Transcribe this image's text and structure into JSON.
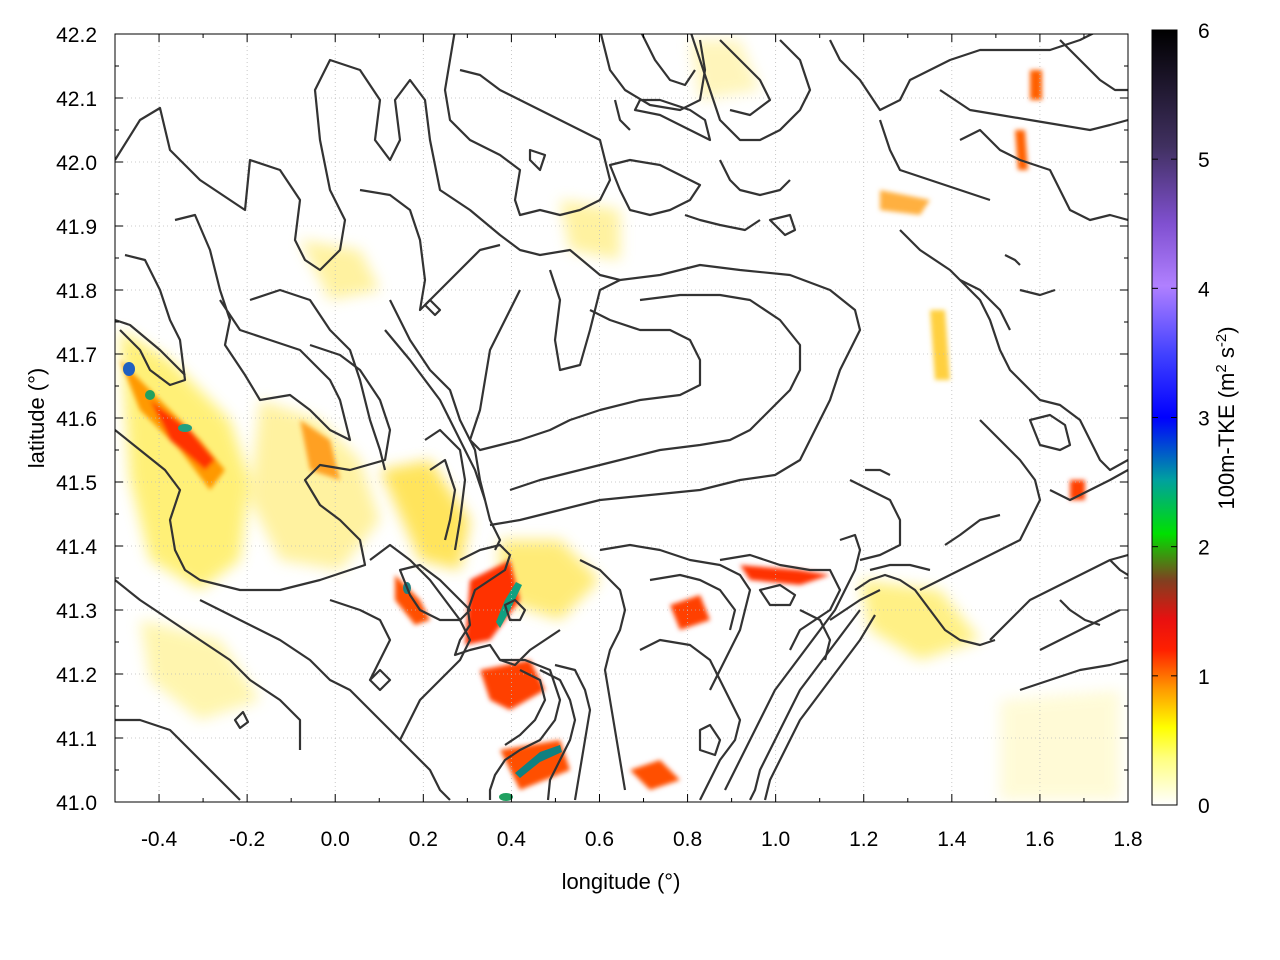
{
  "chart_data": {
    "type": "heatmap",
    "title": "",
    "xlabel": "longitude (°)",
    "ylabel": "latitude (°)",
    "colorbar_label": "100m-TKE (m² s⁻²)",
    "colorbar_label_parts": {
      "base": "100m-TKE (m",
      "sup1": "2",
      "mid": " s",
      "sup2": "-2",
      "end": ")"
    },
    "xlim": [
      -0.5,
      1.8
    ],
    "ylim": [
      41.0,
      42.2
    ],
    "clim": [
      0,
      6
    ],
    "xticks": [
      -0.4,
      -0.2,
      0.0,
      0.2,
      0.4,
      0.6,
      0.8,
      1.0,
      1.2,
      1.4,
      1.6,
      1.8
    ],
    "xtick_labels": [
      "-0.4",
      "-0.2",
      "0.0",
      "0.2",
      "0.4",
      "0.6",
      "0.8",
      "1.0",
      "1.2",
      "1.4",
      "1.6",
      "1.8"
    ],
    "yticks": [
      41.0,
      41.1,
      41.2,
      41.3,
      41.4,
      41.5,
      41.6,
      41.7,
      41.8,
      41.9,
      42.0,
      42.1,
      42.2
    ],
    "ytick_labels": [
      "41.0",
      "41.1",
      "41.2",
      "41.3",
      "41.4",
      "41.5",
      "41.6",
      "41.7",
      "41.8",
      "41.9",
      "42.0",
      "42.1",
      "42.2"
    ],
    "cticks": [
      0,
      1,
      2,
      3,
      4,
      5,
      6
    ],
    "ctick_labels": [
      "0",
      "1",
      "2",
      "3",
      "4",
      "5",
      "6"
    ],
    "colormap": [
      "#ffffff",
      "#ffff00",
      "#ff8000",
      "#ff0000",
      "#c01818",
      "#00c000",
      "#0000ff",
      "#8040ff",
      "#c0a0ff",
      "#000000"
    ],
    "grid": true,
    "contours": "terrain elevation contour lines (black)",
    "tke_features": [
      {
        "lon": -0.47,
        "lat": 41.68,
        "tke": 3.0
      },
      {
        "lon": -0.43,
        "lat": 41.64,
        "tke": 2.0
      },
      {
        "lon": -0.35,
        "lat": 41.58,
        "tke": 1.5
      },
      {
        "lon": -0.28,
        "lat": 41.52,
        "tke": 0.9
      },
      {
        "lon": -0.05,
        "lat": 41.55,
        "tke": 0.5
      },
      {
        "lon": 0.15,
        "lat": 41.32,
        "tke": 1.8
      },
      {
        "lon": 0.38,
        "lat": 41.33,
        "tke": 2.0
      },
      {
        "lon": 0.36,
        "lat": 41.28,
        "tke": 1.4
      },
      {
        "lon": 0.39,
        "lat": 41.19,
        "tke": 0.9
      },
      {
        "lon": 0.47,
        "lat": 41.07,
        "tke": 2.2
      },
      {
        "lon": 0.38,
        "lat": 41.01,
        "tke": 2.0
      },
      {
        "lon": 0.78,
        "lat": 41.3,
        "tke": 1.0
      },
      {
        "lon": 0.95,
        "lat": 41.36,
        "tke": 0.9
      },
      {
        "lon": 0.72,
        "lat": 41.05,
        "tke": 0.8
      },
      {
        "lon": 1.55,
        "lat": 42.05,
        "tke": 0.7
      },
      {
        "lon": 1.6,
        "lat": 42.13,
        "tke": 0.8
      },
      {
        "lon": 1.32,
        "lat": 41.26,
        "tke": 0.5
      },
      {
        "lon": 1.68,
        "lat": 41.47,
        "tke": 0.7
      },
      {
        "lon": -0.18,
        "lat": 41.78,
        "tke": 0.4
      },
      {
        "lon": 0.25,
        "lat": 41.45,
        "tke": 0.6
      }
    ]
  }
}
